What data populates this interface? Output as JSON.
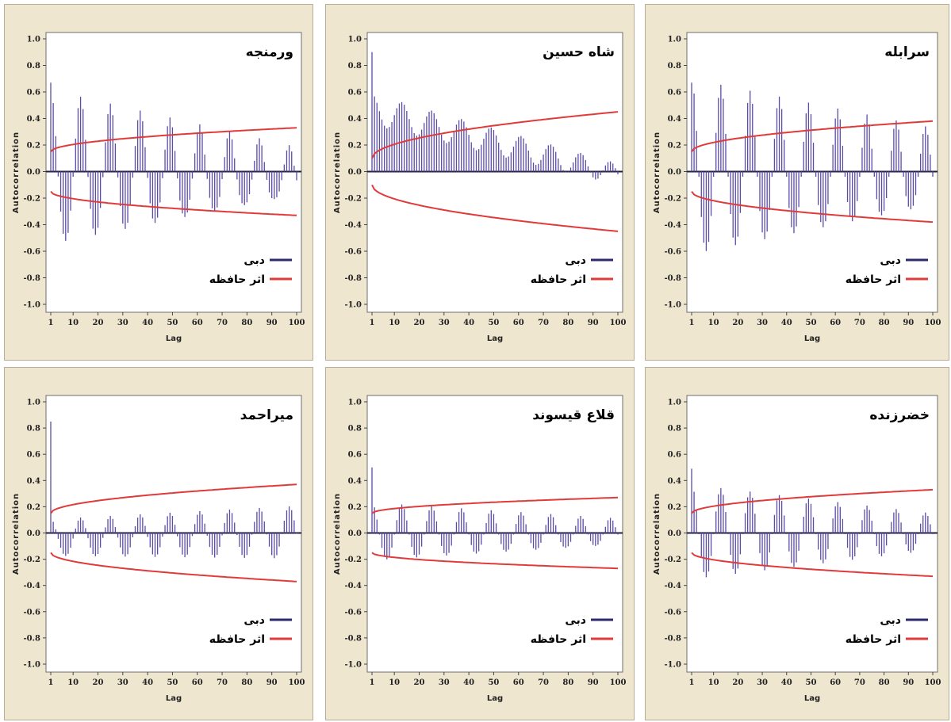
{
  "colors": {
    "panel_bg": "#efe6cf",
    "plot_bg": "#ffffff",
    "acf_bar": "#5b4ca8",
    "memory_line": "#e03a3a",
    "legend_acf": "#2d2a6e",
    "legend_memory": "#e03a3a"
  },
  "chart_data": [
    {
      "type": "bar",
      "title": "ورمنجه",
      "xlabel": "Lag",
      "ylabel": "Autocorrelation",
      "xlim": [
        1,
        100
      ],
      "ylim": [
        -1.0,
        1.0
      ],
      "xticks": [
        "1",
        "10",
        "20",
        "30",
        "40",
        "50",
        "60",
        "70",
        "80",
        "90",
        "100"
      ],
      "yticks": [
        "1.0",
        "0.8",
        "0.6",
        "0.4",
        "0.2",
        "0.0",
        "-0.2",
        "-0.4",
        "-0.6",
        "-0.8",
        "-1.0"
      ],
      "legend": {
        "position": "bottom-right",
        "acf_label": "دبی",
        "memory_label": "اثر حافظه"
      },
      "acf_model": {
        "kind": "periodic",
        "a0": 0.67,
        "amp1": 0.58,
        "amp_end": 0.18,
        "period": 12,
        "trend1": 0,
        "trend_end": -0.03,
        "bias": 0.12
      },
      "memory_band": {
        "start": 0.15,
        "end": 0.33
      }
    },
    {
      "type": "bar",
      "title": "شاه حسین",
      "xlabel": "Lag",
      "ylabel": "Autocorrelation",
      "xlim": [
        1,
        100
      ],
      "ylim": [
        -1.0,
        1.0
      ],
      "xticks": [
        "1",
        "10",
        "20",
        "30",
        "40",
        "50",
        "60",
        "70",
        "80",
        "90",
        "100"
      ],
      "yticks": [
        "1.0",
        "0.8",
        "0.6",
        "0.4",
        "0.2",
        "0.0",
        "-0.2",
        "-0.4",
        "-0.6",
        "-0.8",
        "-1.0"
      ],
      "legend": {
        "position": "bottom-right",
        "acf_label": "دبی",
        "memory_label": "اثر حافظه"
      },
      "acf_model": {
        "kind": "trend",
        "a0": 0.9,
        "amp1": 0.13,
        "amp_end": 0.09,
        "period": 12,
        "trend1": 0.47,
        "trend_end": -0.02,
        "bias": 0
      },
      "memory_band": {
        "start": 0.1,
        "end": 0.45
      }
    },
    {
      "type": "bar",
      "title": "سرابله",
      "xlabel": "Lag",
      "ylabel": "Autocorrelation",
      "xlim": [
        1,
        100
      ],
      "ylim": [
        -1.0,
        1.0
      ],
      "xticks": [
        "1",
        "10",
        "20",
        "30",
        "40",
        "50",
        "60",
        "70",
        "80",
        "90",
        "100"
      ],
      "yticks": [
        "1.0",
        "0.8",
        "0.6",
        "0.4",
        "0.2",
        "0.0",
        "-0.2",
        "-0.4",
        "-0.6",
        "-0.8",
        "-1.0"
      ],
      "legend": {
        "position": "bottom-right",
        "acf_label": "دبی",
        "memory_label": "اثر حافظه"
      },
      "acf_model": {
        "kind": "periodic",
        "a0": 0.67,
        "amp1": 0.66,
        "amp_end": 0.29,
        "period": 12,
        "trend1": 0,
        "trend_end": 0,
        "bias": 0.13
      },
      "memory_band": {
        "start": 0.15,
        "end": 0.38
      }
    },
    {
      "type": "bar",
      "title": "میراحمد",
      "xlabel": "Lag",
      "ylabel": "Autocorrelation",
      "xlim": [
        1,
        100
      ],
      "ylim": [
        -1.0,
        1.0
      ],
      "xticks": [
        "1",
        "10",
        "20",
        "30",
        "40",
        "50",
        "60",
        "70",
        "80",
        "90",
        "100"
      ],
      "yticks": [
        "1.0",
        "0.8",
        "0.6",
        "0.4",
        "0.2",
        "0.0",
        "-0.2",
        "-0.4",
        "-0.6",
        "-0.8",
        "-1.0"
      ],
      "legend": {
        "position": "bottom-right",
        "acf_label": "دبی",
        "memory_label": "اثر حافظه"
      },
      "acf_model": {
        "kind": "periodic",
        "a0": 0.85,
        "amp1": 0.14,
        "amp_end": 0.2,
        "period": 12,
        "trend1": -0.04,
        "trend_end": 0,
        "bias": 0.02
      },
      "memory_band": {
        "start": 0.15,
        "end": 0.37
      }
    },
    {
      "type": "bar",
      "title": "قلاع قیسوند",
      "xlabel": "Lag",
      "ylabel": "Autocorrelation",
      "xlim": [
        1,
        100
      ],
      "ylim": [
        -1.0,
        1.0
      ],
      "xticks": [
        "1",
        "10",
        "20",
        "30",
        "40",
        "50",
        "60",
        "70",
        "80",
        "90",
        "100"
      ],
      "yticks": [
        "1.0",
        "0.8",
        "0.6",
        "0.4",
        "0.2",
        "0.0",
        "-0.2",
        "-0.4",
        "-0.6",
        "-0.8",
        "-1.0"
      ],
      "legend": {
        "position": "bottom-right",
        "acf_label": "دبی",
        "memory_label": "اثر حافظه"
      },
      "acf_model": {
        "kind": "periodic",
        "a0": 0.5,
        "amp1": 0.22,
        "amp_end": 0.1,
        "period": 12,
        "trend1": 0,
        "trend_end": 0,
        "bias": 0.04
      },
      "memory_band": {
        "start": 0.15,
        "end": 0.27
      }
    },
    {
      "type": "bar",
      "title": "خضرزنده",
      "xlabel": "Lag",
      "ylabel": "Autocorrelation",
      "xlim": [
        1,
        100
      ],
      "ylim": [
        -1.0,
        1.0
      ],
      "xticks": [
        "1",
        "10",
        "20",
        "30",
        "40",
        "50",
        "60",
        "70",
        "80",
        "90",
        "100"
      ],
      "yticks": [
        "1.0",
        "0.8",
        "0.6",
        "0.4",
        "0.2",
        "0.0",
        "-0.2",
        "-0.4",
        "-0.6",
        "-0.8",
        "-1.0"
      ],
      "legend": {
        "position": "bottom-right",
        "acf_label": "دبی",
        "memory_label": "اثر حافظه"
      },
      "acf_model": {
        "kind": "periodic",
        "a0": 0.49,
        "amp1": 0.36,
        "amp_end": 0.14,
        "period": 12,
        "trend1": 0,
        "trend_end": 0,
        "bias": 0.03
      },
      "memory_band": {
        "start": 0.15,
        "end": 0.33
      }
    }
  ]
}
